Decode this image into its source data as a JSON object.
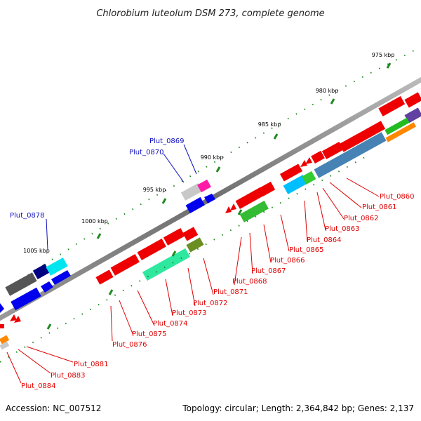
{
  "title": "Chlorobium luteolum DSM 273, complete genome",
  "footer": {
    "accession": "Accession: NC_007512",
    "summary": "Topology: circular; Length: 2,364,842 bp; Genes: 2,137"
  },
  "colors": {
    "backbone": "#7a7a7a",
    "tick": "#1f8a1f",
    "upper_labels": "#1010c0",
    "lower_labels": "#e00000"
  },
  "scale_labels": [
    "975 kbp",
    "980 kbp",
    "985 kbp",
    "990 kbp",
    "995 kbp",
    "1000 kbp",
    "1005 kbp"
  ],
  "gene_labels_upper": [
    "Plut_0869",
    "Plut_0870",
    "Plut_0878"
  ],
  "gene_labels_lower": [
    "Plut_0860",
    "Plut_0861",
    "Plut_0862",
    "Plut_0863",
    "Plut_0864",
    "Plut_0865",
    "Plut_0866",
    "Plut_0867",
    "Plut_0868",
    "Plut_0871",
    "Plut_0872",
    "Plut_0873",
    "Plut_0874",
    "Plut_0875",
    "Plut_0876",
    "Plut_0881",
    "Plut_0883",
    "Plut_0884"
  ]
}
